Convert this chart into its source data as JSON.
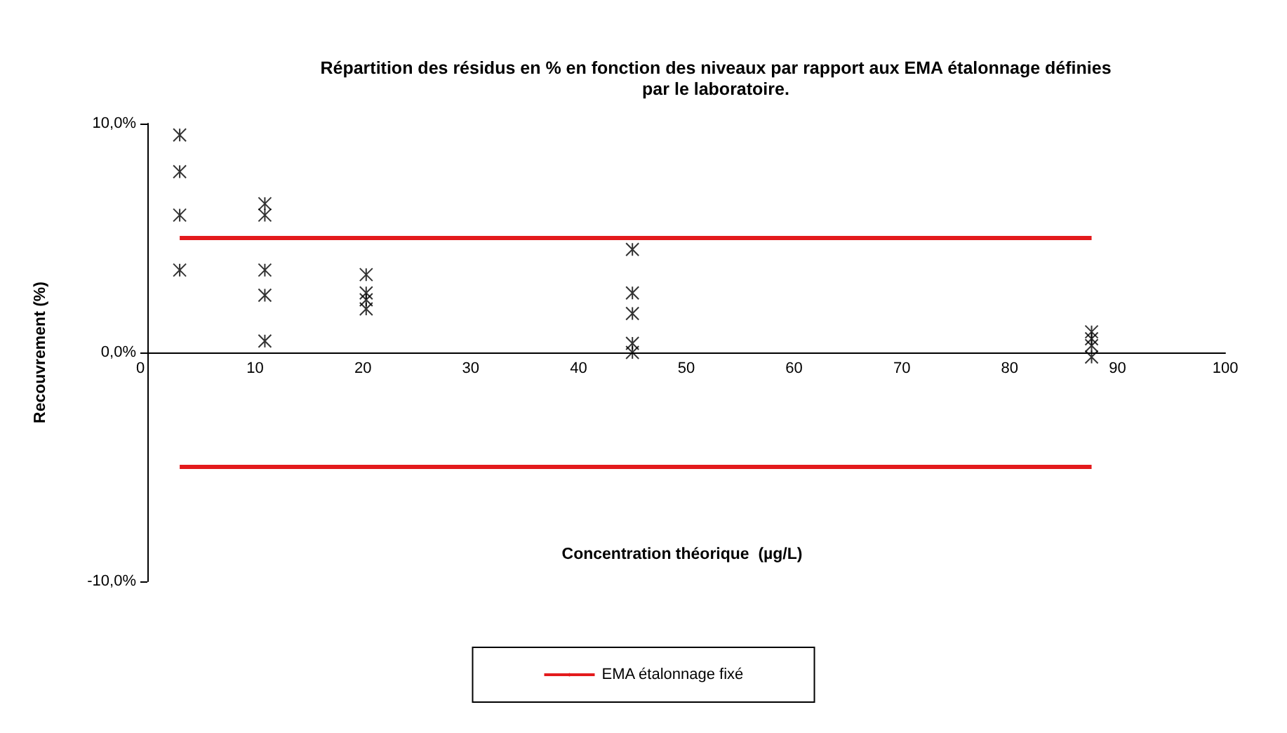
{
  "chart_data": {
    "type": "scatter",
    "title": "Répartition des résidus en % en fonction des niveaux par rapport aux EMA étalonnage définies\npar le laboratoire.",
    "xlabel": "Concentration théorique  (µg/L)",
    "ylabel": "Recouvrement (%)",
    "xlim": [
      0,
      100
    ],
    "xticks": [
      0,
      10,
      20,
      30,
      40,
      50,
      60,
      70,
      80,
      90,
      100
    ],
    "ylim": [
      -10,
      10
    ],
    "yticks": [
      {
        "value": -10,
        "label": "-10,0%"
      },
      {
        "value": 0,
        "label": "0,0%"
      },
      {
        "value": 10,
        "label": "10,0%"
      }
    ],
    "grid": false,
    "legend": "bottom",
    "marker": "cross",
    "series": [
      {
        "type": "scatter",
        "color": "#000000",
        "x": [
          3,
          3,
          3,
          3,
          10.9,
          10.9,
          10.9,
          10.9,
          10.9,
          20.3,
          20.3,
          20.3,
          20.3,
          45,
          45,
          45,
          45,
          45,
          87.6,
          87.6,
          87.6,
          87.6
        ],
        "values": [
          9.5,
          7.9,
          6.0,
          3.6,
          6.5,
          6.0,
          3.6,
          2.5,
          0.5,
          3.4,
          2.6,
          2.3,
          1.9,
          4.5,
          2.6,
          1.7,
          0.4,
          0.0,
          0.9,
          0.6,
          0.3,
          -0.2
        ]
      },
      {
        "type": "line",
        "marker": "none",
        "name": "EMA étalonnage fixé",
        "color": "#e31a1c",
        "x": [
          3,
          87.6
        ],
        "values": [
          5,
          5
        ]
      },
      {
        "type": "line",
        "marker": "none",
        "color": "#e31a1c",
        "x": [
          3,
          87.6
        ],
        "values": [
          -5,
          -5
        ]
      }
    ]
  }
}
